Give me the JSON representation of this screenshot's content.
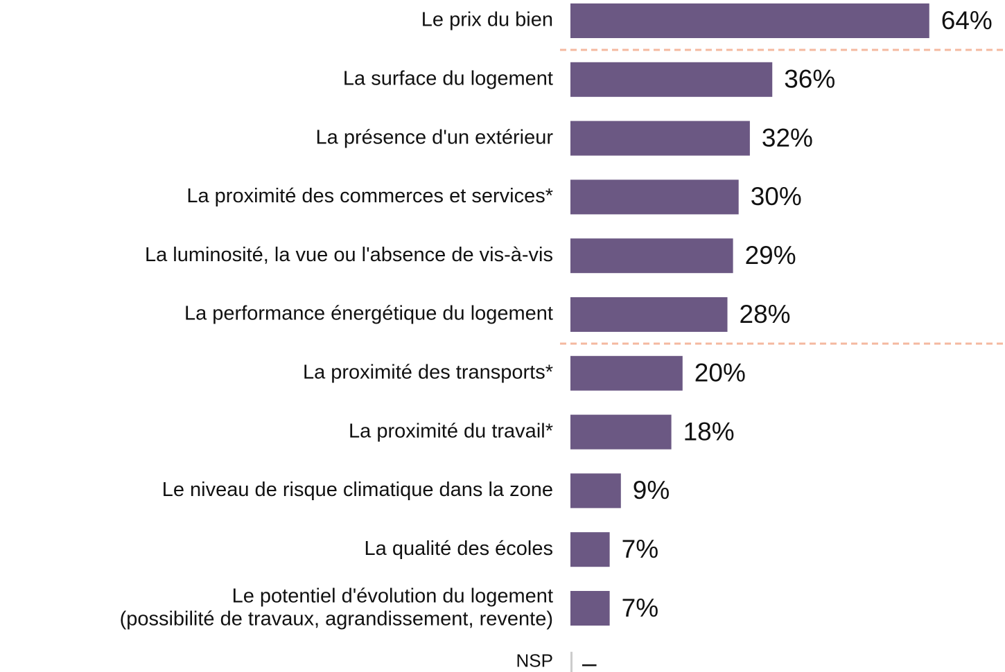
{
  "chart_data": {
    "type": "bar",
    "orientation": "horizontal",
    "color": "#6b5883",
    "categories": [
      "Le prix du bien",
      "La surface du logement",
      "La présence d'un extérieur",
      "La proximité des commerces et services*",
      "La luminosité, la vue ou l'absence de vis-à-vis",
      "La performance énergétique du logement",
      "La proximité des transports*",
      "La proximité du travail*",
      "Le niveau de risque climatique dans la zone",
      "La qualité des écoles",
      "Le potentiel d'évolution du logement\n(possibilité de travaux, agrandissement, revente)",
      "NSP"
    ],
    "values": [
      64,
      36,
      32,
      30,
      29,
      28,
      20,
      18,
      9,
      7,
      7,
      null
    ],
    "value_labels": [
      "64%",
      "36%",
      "32%",
      "30%",
      "29%",
      "28%",
      "20%",
      "18%",
      "9%",
      "7%",
      "7%",
      "–"
    ]
  }
}
